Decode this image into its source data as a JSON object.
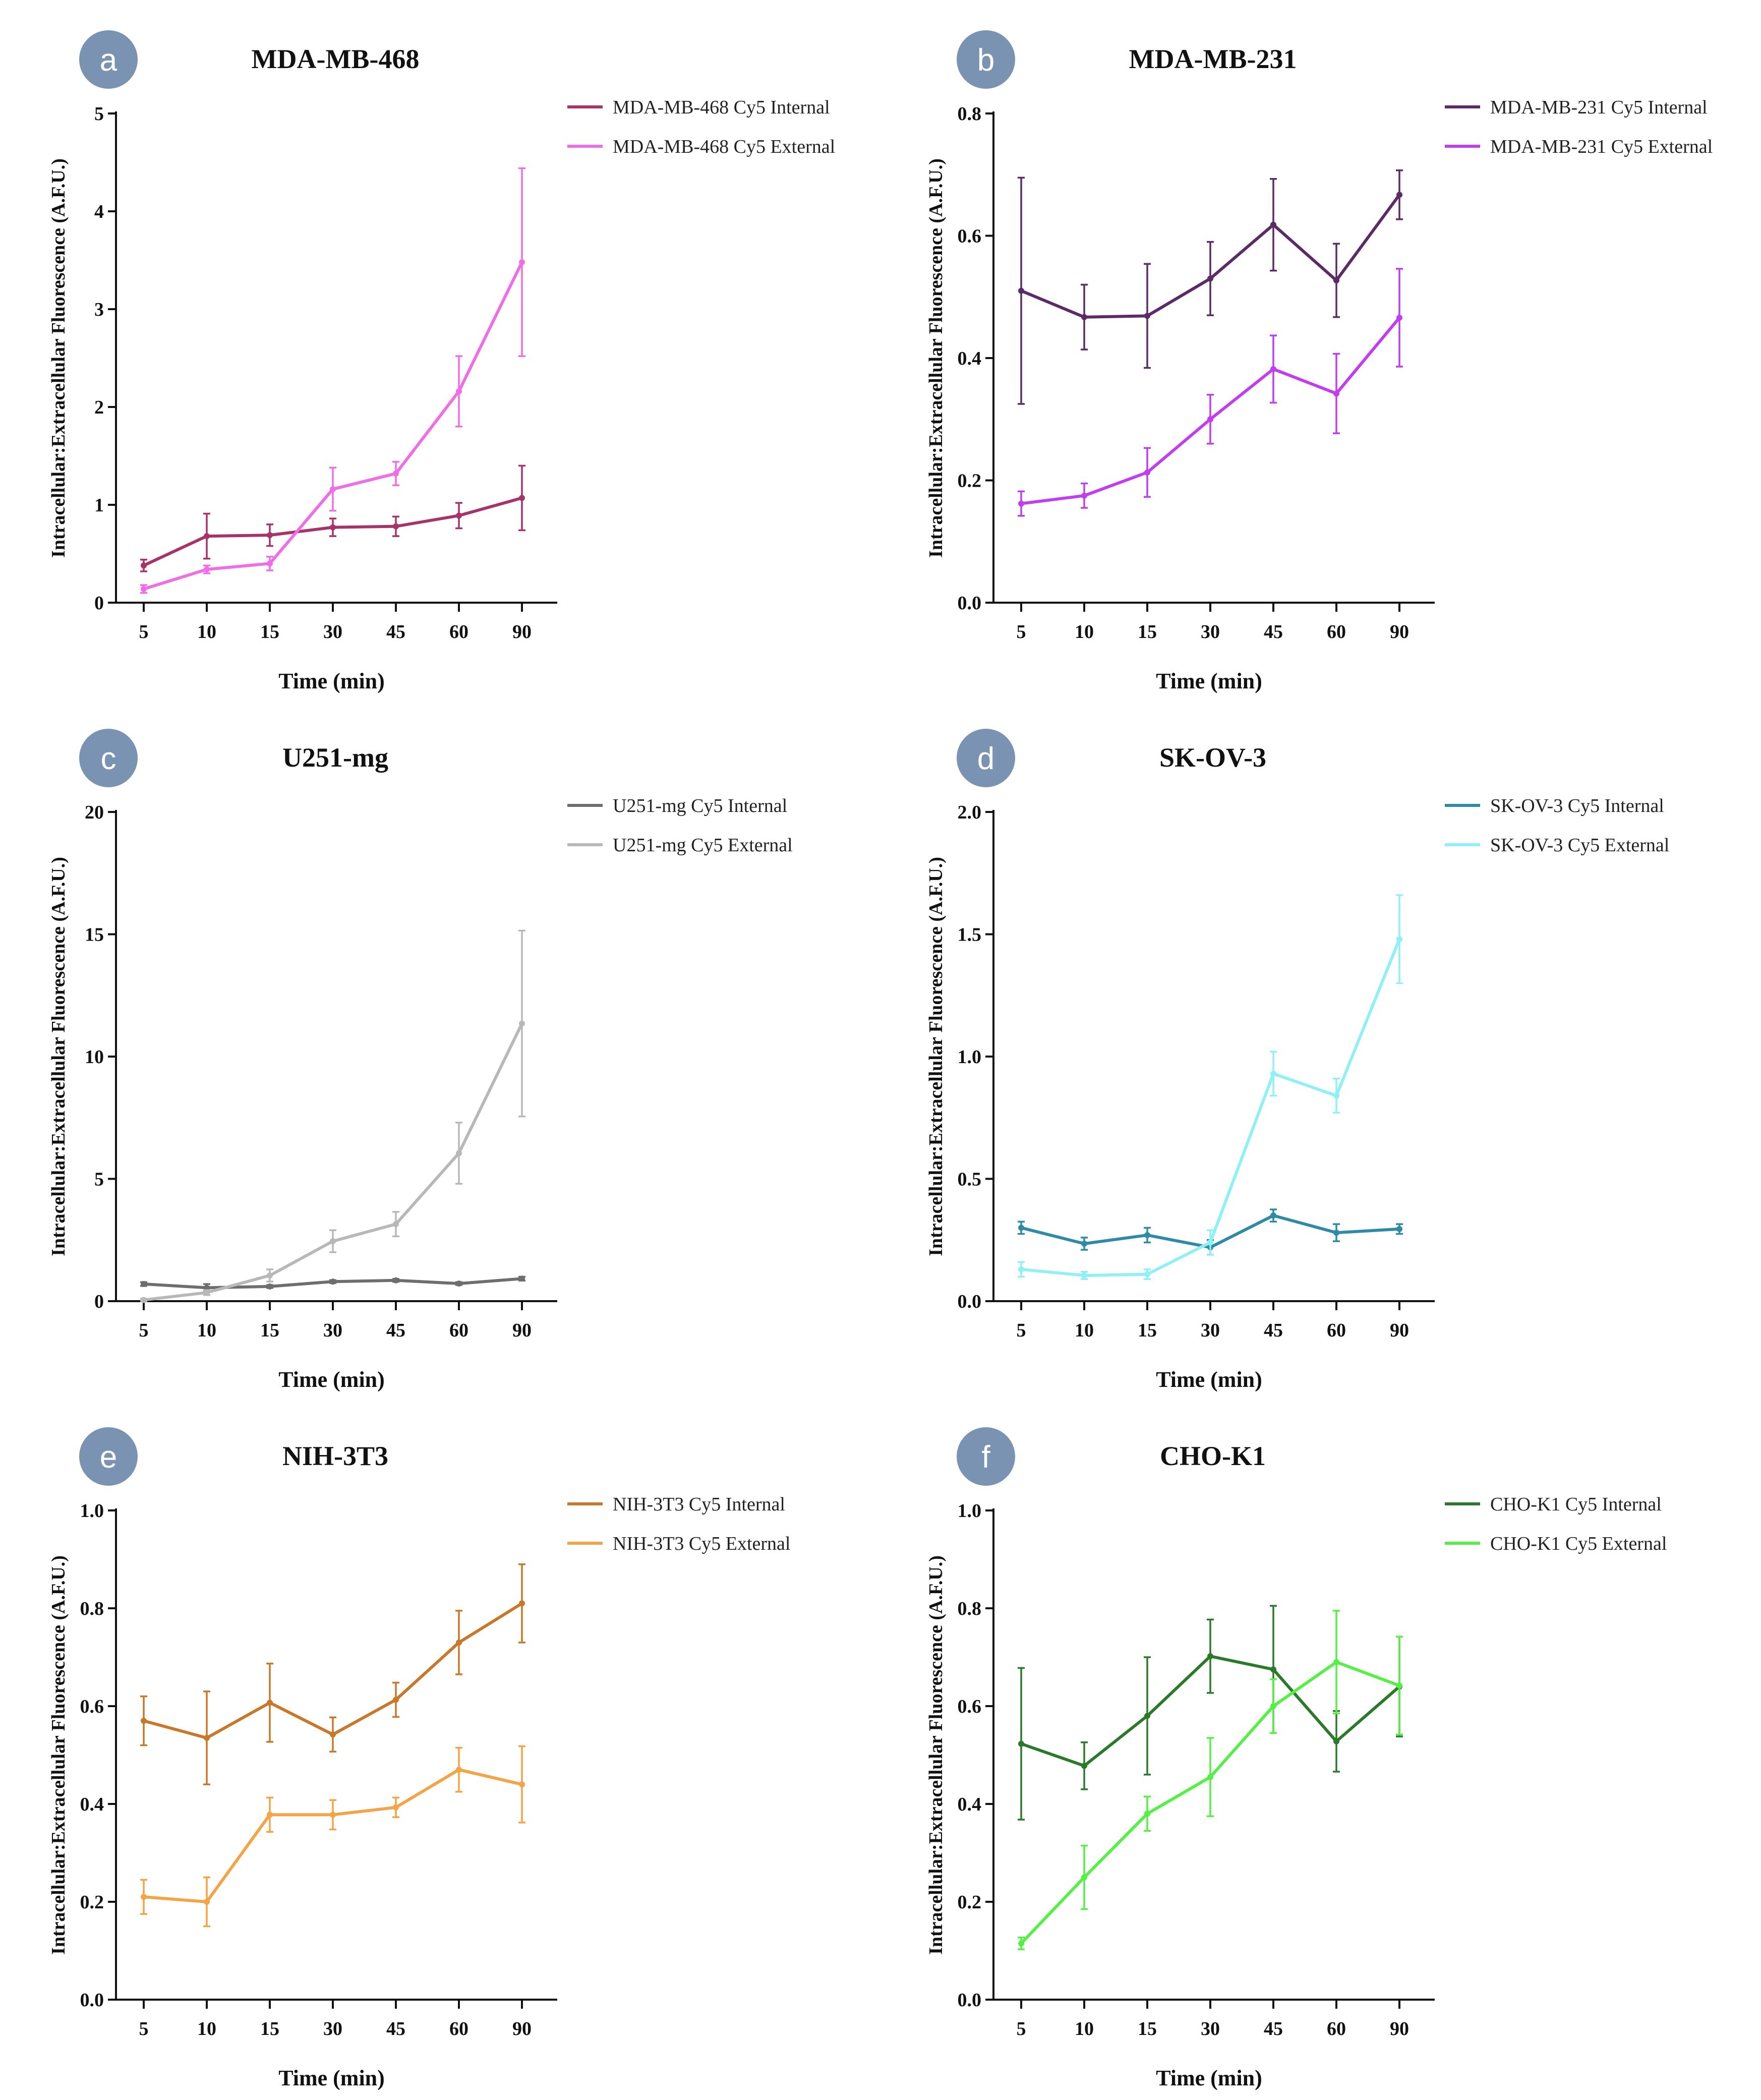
{
  "xlabel": "Time (min)",
  "ylabel": "Intracellular:Extracellular Fluorescence (A.F.U.)",
  "chart_data": [
    {
      "panel": "a",
      "type": "line",
      "title": "MDA-MB-468",
      "categories": [
        "5",
        "10",
        "15",
        "30",
        "45",
        "60",
        "90"
      ],
      "ylim": [
        0,
        5
      ],
      "yticks": [
        "0",
        "1",
        "2",
        "3",
        "4",
        "5"
      ],
      "series": [
        {
          "name": "MDA-MB-468 Cy5 Internal",
          "color": "#a8326a",
          "values": [
            0.38,
            0.68,
            0.69,
            0.77,
            0.78,
            0.89,
            1.07
          ],
          "errors": [
            0.06,
            0.23,
            0.11,
            0.09,
            0.1,
            0.13,
            0.33
          ]
        },
        {
          "name": "MDA-MB-468 Cy5 External",
          "color": "#f06de8",
          "values": [
            0.14,
            0.34,
            0.4,
            1.16,
            1.32,
            2.16,
            3.48
          ],
          "errors": [
            0.04,
            0.04,
            0.07,
            0.22,
            0.12,
            0.36,
            0.96
          ]
        }
      ]
    },
    {
      "panel": "b",
      "type": "line",
      "title": "MDA-MB-231",
      "categories": [
        "5",
        "10",
        "15",
        "30",
        "45",
        "60",
        "90"
      ],
      "ylim": [
        0,
        0.8
      ],
      "yticks": [
        "0.0",
        "0.2",
        "0.4",
        "0.6",
        "0.8"
      ],
      "series": [
        {
          "name": "MDA-MB-231 Cy5 Internal",
          "color": "#5c2a66",
          "values": [
            0.51,
            0.467,
            0.469,
            0.53,
            0.618,
            0.527,
            0.667
          ],
          "errors": [
            0.185,
            0.053,
            0.085,
            0.06,
            0.075,
            0.06,
            0.04
          ]
        },
        {
          "name": "MDA-MB-231 Cy5 External",
          "color": "#c23cf0",
          "values": [
            0.162,
            0.175,
            0.213,
            0.3,
            0.382,
            0.342,
            0.466
          ],
          "errors": [
            0.02,
            0.02,
            0.04,
            0.04,
            0.055,
            0.065,
            0.08
          ]
        }
      ]
    },
    {
      "panel": "c",
      "type": "line",
      "title": "U251-mg",
      "categories": [
        "5",
        "10",
        "15",
        "30",
        "45",
        "60",
        "90"
      ],
      "ylim": [
        0,
        20
      ],
      "yticks": [
        "0",
        "5",
        "10",
        "15",
        "20"
      ],
      "series": [
        {
          "name": "U251-mg Cy5 Internal",
          "color": "#6e6e6e",
          "values": [
            0.7,
            0.55,
            0.6,
            0.8,
            0.85,
            0.72,
            0.92
          ],
          "errors": [
            0.08,
            0.15,
            0.06,
            0.06,
            0.06,
            0.06,
            0.08
          ]
        },
        {
          "name": "U251-mg Cy5 External",
          "color": "#b8b8b8",
          "values": [
            0.05,
            0.35,
            1.05,
            2.45,
            3.15,
            6.05,
            11.35
          ],
          "errors": [
            0.05,
            0.1,
            0.25,
            0.45,
            0.5,
            1.25,
            3.8
          ]
        }
      ]
    },
    {
      "panel": "d",
      "type": "line",
      "title": "SK-OV-3",
      "categories": [
        "5",
        "10",
        "15",
        "30",
        "45",
        "60",
        "90"
      ],
      "ylim": [
        0,
        2.0
      ],
      "yticks": [
        "0.0",
        "0.5",
        "1.0",
        "1.5",
        "2.0"
      ],
      "series": [
        {
          "name": "SK-OV-3 Cy5 Internal",
          "color": "#2e8ba8",
          "values": [
            0.3,
            0.235,
            0.27,
            0.22,
            0.35,
            0.28,
            0.295
          ],
          "errors": [
            0.025,
            0.025,
            0.03,
            0.03,
            0.025,
            0.035,
            0.02
          ]
        },
        {
          "name": "SK-OV-3 Cy5 External",
          "color": "#8ff0f5",
          "values": [
            0.13,
            0.105,
            0.11,
            0.24,
            0.93,
            0.84,
            1.48
          ],
          "errors": [
            0.03,
            0.015,
            0.02,
            0.05,
            0.09,
            0.07,
            0.18
          ]
        }
      ]
    },
    {
      "panel": "e",
      "type": "line",
      "title": "NIH-3T3",
      "categories": [
        "5",
        "10",
        "15",
        "30",
        "45",
        "60",
        "90"
      ],
      "ylim": [
        0,
        1.0
      ],
      "yticks": [
        "0.0",
        "0.2",
        "0.4",
        "0.6",
        "0.8",
        "1.0"
      ],
      "series": [
        {
          "name": "NIH-3T3 Cy5 Internal",
          "color": "#c9782a",
          "values": [
            0.57,
            0.535,
            0.607,
            0.542,
            0.613,
            0.73,
            0.81
          ],
          "errors": [
            0.05,
            0.095,
            0.08,
            0.035,
            0.035,
            0.065,
            0.08
          ]
        },
        {
          "name": "NIH-3T3 Cy5 External",
          "color": "#f5a445",
          "values": [
            0.21,
            0.2,
            0.378,
            0.378,
            0.393,
            0.47,
            0.44
          ],
          "errors": [
            0.035,
            0.05,
            0.035,
            0.03,
            0.02,
            0.045,
            0.078
          ]
        }
      ]
    },
    {
      "panel": "f",
      "type": "line",
      "title": "CHO-K1",
      "categories": [
        "5",
        "10",
        "15",
        "30",
        "45",
        "60",
        "90"
      ],
      "ylim": [
        0,
        1.0
      ],
      "yticks": [
        "0.0",
        "0.2",
        "0.4",
        "0.6",
        "0.8",
        "1.0"
      ],
      "series": [
        {
          "name": "CHO-K1 Cy5 Internal",
          "color": "#2b7a2b",
          "values": [
            0.523,
            0.478,
            0.58,
            0.702,
            0.675,
            0.528,
            0.64
          ],
          "errors": [
            0.155,
            0.048,
            0.12,
            0.075,
            0.13,
            0.062,
            0.102
          ]
        },
        {
          "name": "CHO-K1 Cy5 External",
          "color": "#55f045",
          "values": [
            0.115,
            0.25,
            0.38,
            0.455,
            0.6,
            0.69,
            0.642
          ],
          "errors": [
            0.012,
            0.065,
            0.035,
            0.08,
            0.055,
            0.105,
            0.1
          ]
        }
      ]
    }
  ]
}
